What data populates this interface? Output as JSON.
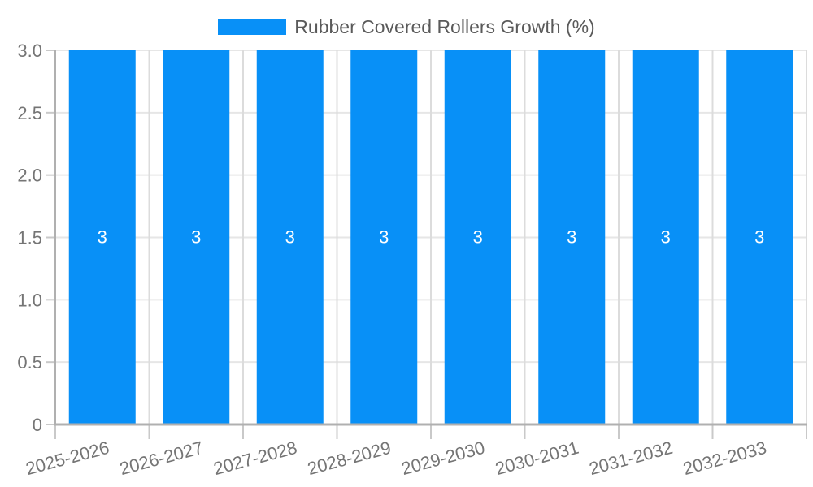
{
  "legend": {
    "label": "Rubber Covered Rollers Growth (%)"
  },
  "colors": {
    "bar": "#0890F7",
    "bar_value_label": "#ffffff",
    "axis_line": "#b0b0b0",
    "grid_horizontal": "#e6e6e6",
    "grid_vertical": "#dcdcdc",
    "tick": "#c9c9c9",
    "axis_label": "#757575",
    "legend_label": "#5a5a5a",
    "background": "#ffffff"
  },
  "chart_data": {
    "type": "bar",
    "title": "",
    "xlabel": "",
    "ylabel": "",
    "categories": [
      "2025-2026",
      "2026-2027",
      "2027-2028",
      "2028-2029",
      "2029-2030",
      "2030-2031",
      "2031-2032",
      "2032-2033"
    ],
    "series": [
      {
        "name": "Rubber Covered Rollers Growth (%)",
        "values": [
          3,
          3,
          3,
          3,
          3,
          3,
          3,
          3
        ]
      }
    ],
    "bar_value_labels": [
      "3",
      "3",
      "3",
      "3",
      "3",
      "3",
      "3",
      "3"
    ],
    "ylim": [
      0,
      3
    ],
    "yticks": {
      "values": [
        0,
        0.5,
        1,
        1.5,
        2,
        2.5,
        3
      ],
      "labels": [
        "0",
        "0.5",
        "1.0",
        "1.5",
        "2.0",
        "2.5",
        "3.0"
      ]
    },
    "grid": true,
    "legend_position": "top",
    "x_label_rotation_deg": -15
  }
}
